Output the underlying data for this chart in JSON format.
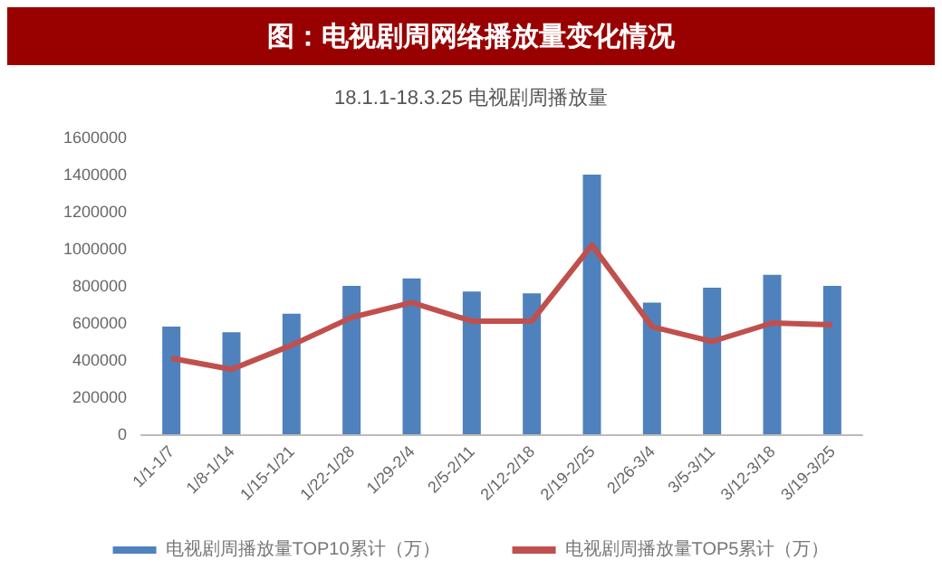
{
  "chart_data": {
    "type": "bar",
    "title": "图：电视剧周网络播放量变化情况",
    "subtitle": "18.1.1-18.3.25 电视剧周播放量",
    "categories": [
      "1/1-1/7",
      "1/8-1/14",
      "1/15-1/21",
      "1/22-1/28",
      "1/29-2/4",
      "2/5-2/11",
      "2/12-2/18",
      "2/19-2/25",
      "2/26-3/4",
      "3/5-3/11",
      "3/12-3/18",
      "3/19-3/25"
    ],
    "series": [
      {
        "name": "电视剧周播放量TOP10累计（万）",
        "color": "#4f81bd",
        "values": [
          580000,
          550000,
          650000,
          800000,
          840000,
          770000,
          760000,
          1400000,
          710000,
          790000,
          860000,
          800000
        ]
      },
      {
        "name": "电视剧周播放量TOP5累计（万）",
        "type": "line",
        "color": "#c0504d",
        "values": [
          410000,
          350000,
          480000,
          630000,
          710000,
          610000,
          610000,
          1020000,
          580000,
          500000,
          600000,
          590000
        ]
      }
    ],
    "ylim": [
      0,
      1600000
    ],
    "yticks": [
      0,
      200000,
      400000,
      600000,
      800000,
      1000000,
      1200000,
      1400000,
      1600000
    ],
    "grid": false,
    "legend": "bottom",
    "marker": "none"
  }
}
